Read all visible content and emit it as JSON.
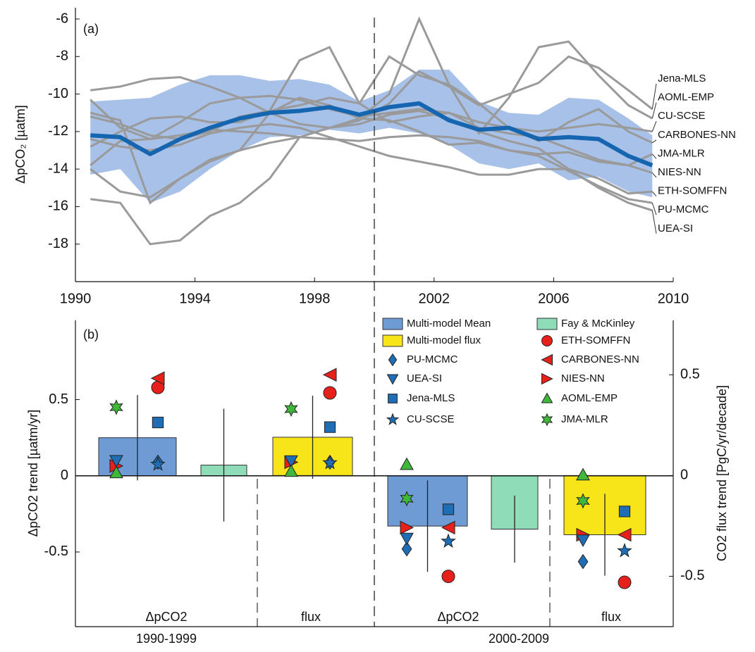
{
  "chart_data": [
    {
      "type": "line",
      "panel_label": "(a)",
      "y_label": "ΔpCO₂ [µatm]",
      "xlim": [
        1990,
        2010
      ],
      "xticks": [
        1990,
        1994,
        1998,
        2002,
        2006,
        2010
      ],
      "ylim": [
        -20,
        -5.4
      ],
      "yticks": [
        -18,
        -16,
        -14,
        -12,
        -10,
        -8,
        -6
      ],
      "vline": 2000,
      "x": [
        1990.5,
        1991.5,
        1992.5,
        1993.5,
        1994.5,
        1995.5,
        1996.5,
        1997.5,
        1998.5,
        1999.5,
        2000.5,
        2001.5,
        2002.5,
        2003.5,
        2004.5,
        2005.5,
        2006.5,
        2007.5,
        2008.5,
        2009.3
      ],
      "band": {
        "color": "#a8c1e8",
        "upper": [
          -10.4,
          -10.3,
          -10.2,
          -9.5,
          -9.0,
          -9.0,
          -9.3,
          -9.2,
          -9.5,
          -10.4,
          -9.8,
          -8.7,
          -8.7,
          -10.4,
          -11.0,
          -11.1,
          -10.2,
          -10.3,
          -11.3,
          -12.2
        ],
        "lower": [
          -14.3,
          -14.0,
          -15.8,
          -15.2,
          -14.0,
          -13.0,
          -12.3,
          -12.2,
          -11.9,
          -12.1,
          -11.8,
          -12.1,
          -12.7,
          -13.7,
          -14.0,
          -13.7,
          -14.6,
          -14.4,
          -15.2,
          -15.5
        ]
      },
      "mean": {
        "color": "#1565b0",
        "values": [
          -12.2,
          -12.3,
          -13.2,
          -12.4,
          -11.8,
          -11.3,
          -11.0,
          -10.9,
          -10.7,
          -11.1,
          -10.7,
          -10.5,
          -11.4,
          -11.9,
          -11.8,
          -12.4,
          -12.3,
          -12.4,
          -13.3,
          -13.8
        ]
      },
      "series": [
        {
          "name": "Jena-MLS",
          "color": "#9a9a9a",
          "values": [
            -9.8,
            -9.6,
            -9.2,
            -9.1,
            -9.6,
            -10.2,
            -11.0,
            -11.6,
            -11.8,
            -11.4,
            -10.5,
            -8.8,
            -9.6,
            -10.6,
            -10.0,
            -9.4,
            -8.0,
            -8.6,
            -9.8,
            -10.8
          ]
        },
        {
          "name": "AOML-EMP",
          "color": "#9a9a9a",
          "values": [
            -11.0,
            -11.4,
            -15.8,
            -14.5,
            -13.6,
            -13.0,
            -11.0,
            -10.2,
            -10.6,
            -11.3,
            -10.0,
            -6.0,
            -9.5,
            -12.1,
            -10.2,
            -7.5,
            -7.2,
            -9.0,
            -10.6,
            -11.3
          ]
        },
        {
          "name": "CU-SCSE",
          "color": "#9a9a9a",
          "values": [
            -10.3,
            -11.8,
            -12.4,
            -11.5,
            -10.5,
            -10.2,
            -10.1,
            -10.3,
            -10.8,
            -11.2,
            -11.0,
            -10.8,
            -11.0,
            -11.5,
            -11.8,
            -12.0,
            -11.8,
            -11.6,
            -11.8,
            -12.0
          ]
        },
        {
          "name": "CARBONES-NN",
          "color": "#9a9a9a",
          "values": [
            -11.2,
            -11.6,
            -12.2,
            -12.4,
            -12.0,
            -11.2,
            -10.9,
            -10.6,
            -10.2,
            -10.5,
            -8.0,
            -9.0,
            -9.5,
            -10.5,
            -11.8,
            -12.5,
            -11.5,
            -10.8,
            -12.0,
            -12.6
          ]
        },
        {
          "name": "JMA-MLR",
          "color": "#9a9a9a",
          "values": [
            -13.8,
            -12.5,
            -12.4,
            -12.2,
            -11.9,
            -12.0,
            -12.1,
            -12.3,
            -12.4,
            -12.5,
            -12.3,
            -12.2,
            -12.3,
            -12.5,
            -13.0,
            -13.2,
            -13.1,
            -13.6,
            -13.8,
            -13.2
          ]
        },
        {
          "name": "NIES-NN",
          "color": "#9a9a9a",
          "values": [
            -12.8,
            -12.0,
            -11.3,
            -11.2,
            -11.5,
            -11.5,
            -10.9,
            -8.2,
            -7.5,
            -10.5,
            -11.5,
            -11.2,
            -11.0,
            -11.8,
            -12.1,
            -12.3,
            -12.9,
            -13.5,
            -13.8,
            -14.2
          ]
        },
        {
          "name": "ETH-SOMFFN",
          "color": "#9a9a9a",
          "values": [
            -12.4,
            -12.8,
            -13.0,
            -12.7,
            -12.1,
            -11.8,
            -11.6,
            -11.8,
            -12.3,
            -12.8,
            -13.3,
            -13.6,
            -13.9,
            -14.3,
            -14.3,
            -14.0,
            -14.0,
            -14.5,
            -15.3,
            -15.2
          ]
        },
        {
          "name": "PU-MCMC",
          "color": "#9a9a9a",
          "values": [
            -14.0,
            -15.2,
            -15.5,
            -14.5,
            -13.5,
            -13.0,
            -12.6,
            -12.3,
            -11.8,
            -11.3,
            -11.4,
            -12.0,
            -12.7,
            -12.6,
            -13.0,
            -13.3,
            -14.1,
            -14.9,
            -15.6,
            -15.8
          ]
        },
        {
          "name": "UEA-SI",
          "color": "#9a9a9a",
          "values": [
            -15.6,
            -15.8,
            -18.0,
            -17.8,
            -16.5,
            -15.8,
            -14.5,
            -12.3,
            -11.8,
            -11.6,
            -11.1,
            -10.9,
            -11.3,
            -12.0,
            -12.5,
            -12.9,
            -14.0,
            -15.0,
            -15.8,
            -16.2
          ]
        }
      ]
    },
    {
      "type": "bar",
      "panel_label": "(b)",
      "y_label": "ΔpCO2 trend [µatm/yr]",
      "y2_label": "CO2 flux trend [PgC/yr/decade]",
      "categories": [
        "1990-1999",
        "2000-2009"
      ],
      "group_labels": [
        "ΔpCO2",
        "flux",
        "ΔpCO2",
        "flux"
      ],
      "ylim": [
        -0.99,
        1.02
      ],
      "yticks": [
        -0.5,
        0,
        0.5
      ],
      "y2lim": [
        -0.75,
        0.77
      ],
      "y2ticks": [
        -0.5,
        0,
        0.5
      ],
      "series": [
        {
          "name": "Multi-model Mean",
          "color": "#6f9bd4",
          "values": [
            0.25,
            -0.33
          ],
          "errors": [
            0.28,
            0.3
          ]
        },
        {
          "name": "Multi-model flux",
          "color": "#f7e51a",
          "axis": "y2",
          "values": [
            0.19,
            -0.294
          ],
          "errors": [
            0.206,
            0.203
          ]
        },
        {
          "name": "Fay & McKinley",
          "color": "#8fdcb8",
          "values": [
            0.07,
            -0.35
          ],
          "errors": [
            0.37,
            0.22
          ]
        },
        {
          "name": "ETH-SOMFFN",
          "color": "#e8201c",
          "marker": "circle",
          "values": [
            0.58,
            -0.66
          ],
          "flux_values": [
            0.41,
            -0.53
          ]
        },
        {
          "name": "CARBONES-NN",
          "color": "#e8201c",
          "marker": "triangle-left",
          "values": [
            0.64,
            -0.34
          ],
          "flux_values": [
            0.5,
            -0.294
          ]
        },
        {
          "name": "NIES-NN",
          "color": "#e8201c",
          "marker": "triangle-right",
          "values": [
            0.065,
            -0.34
          ],
          "flux_values": [
            0.066,
            -0.294
          ]
        },
        {
          "name": "PU-MCMC",
          "color": "#1f6db5",
          "marker": "diamond",
          "values": [
            0.09,
            -0.48
          ],
          "flux_values": [
            0.066,
            -0.427
          ]
        },
        {
          "name": "UEA-SI",
          "color": "#1f6db5",
          "marker": "triangle-down",
          "values": [
            0.1,
            -0.41
          ],
          "flux_values": [
            0.073,
            -0.32
          ]
        },
        {
          "name": "Jena-MLS",
          "color": "#1f6db5",
          "marker": "square",
          "values": [
            0.35,
            -0.22
          ],
          "flux_values": [
            0.24,
            -0.178
          ]
        },
        {
          "name": "CU-SCSE",
          "color": "#1f6db5",
          "marker": "star5",
          "values": [
            0.075,
            -0.43
          ],
          "flux_values": [
            0.063,
            -0.374
          ]
        },
        {
          "name": "AOML-EMP",
          "color": "#3fb83a",
          "marker": "triangle-up",
          "values": [
            0.02,
            0.074
          ],
          "flux_values": [
            0.021,
            0.003
          ]
        },
        {
          "name": "JMA-MLR",
          "color": "#3fb83a",
          "marker": "star6",
          "values": [
            0.45,
            -0.15
          ],
          "flux_values": [
            0.33,
            -0.126
          ]
        }
      ]
    }
  ]
}
